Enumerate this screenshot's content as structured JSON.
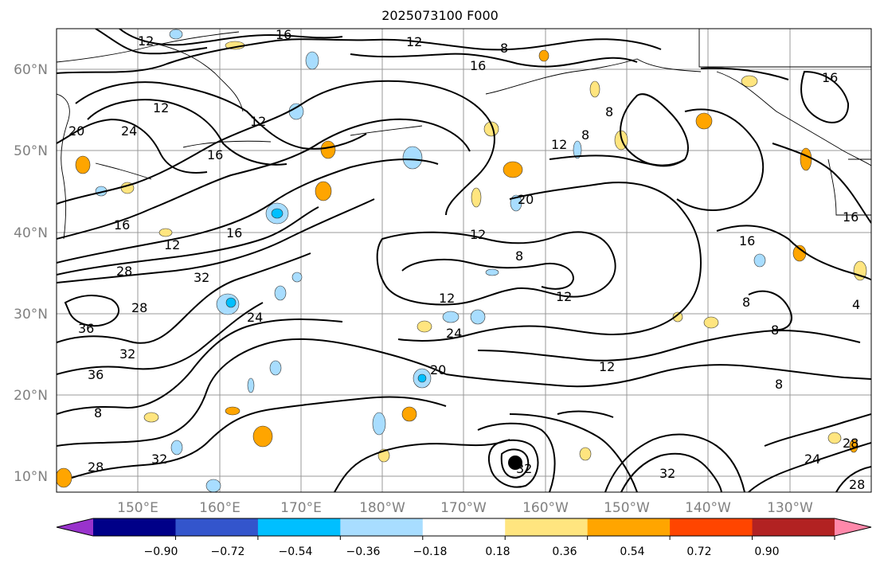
{
  "title": "2025073100 F000",
  "lat_labels": [
    "60°N",
    "50°N",
    "40°N",
    "30°N",
    "20°N",
    "10°N"
  ],
  "lon_labels": [
    "150°E",
    "160°E",
    "170°E",
    "180°W",
    "170°W",
    "160°W",
    "150°W",
    "140°W",
    "130°W"
  ],
  "colorbar": {
    "colors": [
      "#9933cc",
      "#000088",
      "#3355cc",
      "#00bfff",
      "#a8ddff",
      "#ffffff",
      "#ffe57f",
      "#ffa500",
      "#ff4500",
      "#b22222",
      "#ff88aa"
    ],
    "ticks": [
      "−0.90",
      "−0.72",
      "−0.54",
      "−0.36",
      "−0.18",
      "0.18",
      "0.36",
      "0.54",
      "0.72",
      "0.90"
    ]
  },
  "contour_labels": [
    {
      "text": "12"
    },
    {
      "text": "16"
    },
    {
      "text": "12"
    },
    {
      "text": "8"
    },
    {
      "text": "16"
    },
    {
      "text": "16"
    },
    {
      "text": "12"
    },
    {
      "text": "12"
    },
    {
      "text": "24"
    },
    {
      "text": "20"
    },
    {
      "text": "16"
    },
    {
      "text": "16"
    },
    {
      "text": "16"
    },
    {
      "text": "12"
    },
    {
      "text": "28"
    },
    {
      "text": "32"
    },
    {
      "text": "28"
    },
    {
      "text": "36"
    },
    {
      "text": "32"
    },
    {
      "text": "36"
    },
    {
      "text": "24"
    },
    {
      "text": "20"
    },
    {
      "text": "12"
    },
    {
      "text": "8"
    },
    {
      "text": "12"
    },
    {
      "text": "12"
    },
    {
      "text": "24"
    },
    {
      "text": "20"
    },
    {
      "text": "12"
    },
    {
      "text": "8"
    },
    {
      "text": "12"
    },
    {
      "text": "8"
    },
    {
      "text": "8"
    },
    {
      "text": "16"
    },
    {
      "text": "28"
    },
    {
      "text": "32"
    },
    {
      "text": "32"
    },
    {
      "text": "32"
    },
    {
      "text": "28"
    },
    {
      "text": "24"
    },
    {
      "text": "28"
    },
    {
      "text": "8"
    },
    {
      "text": "8"
    },
    {
      "text": "16"
    },
    {
      "text": "8"
    },
    {
      "text": "4"
    }
  ]
}
